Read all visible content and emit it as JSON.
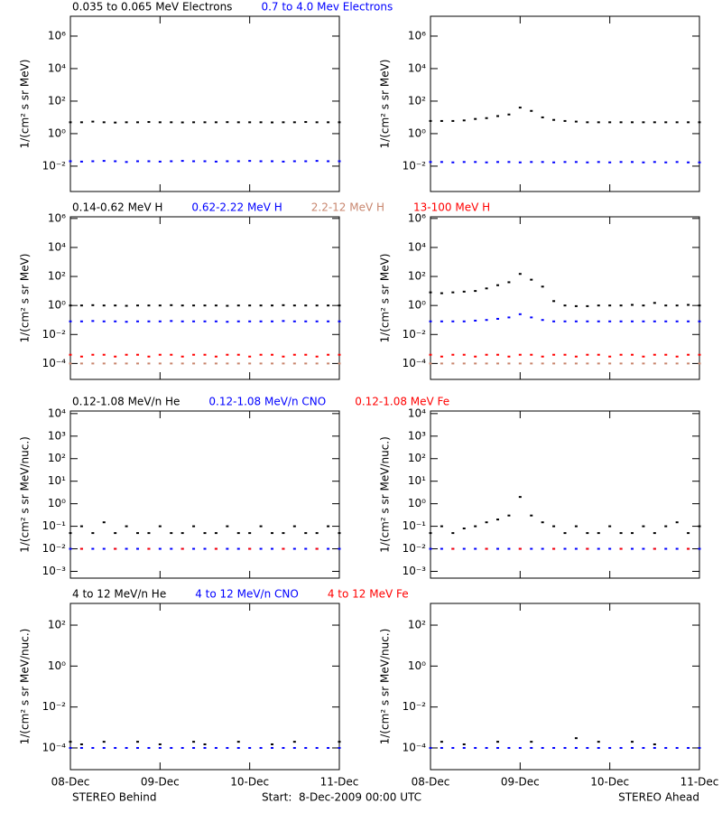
{
  "chart_data": [
    {
      "type": "scatter",
      "ylabel": "1/(cm² s sr MeV)",
      "log_scale": true,
      "ylim": [
        0.000275,
        16600000
      ],
      "yticks": [
        {
          "value": 0.01,
          "label": "10⁻²"
        },
        {
          "value": 1,
          "label": "10⁰"
        },
        {
          "value": 100,
          "label": "10²"
        },
        {
          "value": 10000,
          "label": "10⁴"
        },
        {
          "value": 1000000,
          "label": "10⁶"
        }
      ],
      "xlim": [
        0,
        3
      ],
      "xticks": [
        {
          "value": 0,
          "label": "08-Dec"
        },
        {
          "value": 1,
          "label": "09-Dec"
        },
        {
          "value": 2,
          "label": "10-Dec"
        },
        {
          "value": 3,
          "label": "11-Dec"
        }
      ],
      "x": [
        0,
        0.125,
        0.25,
        0.375,
        0.5,
        0.625,
        0.75,
        0.875,
        1,
        1.125,
        1.25,
        1.375,
        1.5,
        1.625,
        1.75,
        1.875,
        2,
        2.125,
        2.25,
        2.375,
        2.5,
        2.625,
        2.75,
        2.875,
        3
      ],
      "series": [
        {
          "name": "0.035 to 0.065 MeV Electrons",
          "color": "#000000",
          "behind": [
            5,
            5,
            5.5,
            5,
            4.8,
            5,
            5,
            5.2,
            5,
            5,
            4.9,
            5,
            5,
            5,
            5.1,
            5,
            5,
            5,
            4.9,
            5,
            5,
            5.2,
            5,
            5,
            5
          ],
          "ahead": [
            6,
            6,
            6,
            6.5,
            8,
            9,
            12,
            15,
            40,
            25,
            10,
            7,
            6,
            5.5,
            5,
            5,
            5,
            5,
            5,
            5,
            5,
            5,
            5,
            5,
            5
          ]
        },
        {
          "name": "0.7 to 4.0 Mev Electrons",
          "color": "#0000ff",
          "behind": [
            0.02,
            0.019,
            0.02,
            0.021,
            0.02,
            0.018,
            0.02,
            0.02,
            0.019,
            0.02,
            0.021,
            0.02,
            0.02,
            0.019,
            0.02,
            0.02,
            0.021,
            0.02,
            0.02,
            0.019,
            0.02,
            0.02,
            0.021,
            0.02,
            0.02
          ],
          "ahead": [
            0.018,
            0.018,
            0.017,
            0.018,
            0.018,
            0.017,
            0.018,
            0.018,
            0.017,
            0.018,
            0.018,
            0.017,
            0.018,
            0.018,
            0.017,
            0.018,
            0.017,
            0.018,
            0.018,
            0.017,
            0.018,
            0.017,
            0.018,
            0.017,
            0.017
          ]
        }
      ]
    },
    {
      "type": "scatter",
      "ylabel": "1/(cm² s sr MeV)",
      "log_scale": true,
      "ylim": [
        8e-06,
        1300000
      ],
      "yticks": [
        {
          "value": 0.0001,
          "label": "10⁻⁴"
        },
        {
          "value": 0.01,
          "label": "10⁻²"
        },
        {
          "value": 1,
          "label": "10⁰"
        },
        {
          "value": 100,
          "label": "10²"
        },
        {
          "value": 10000,
          "label": "10⁴"
        },
        {
          "value": 1000000,
          "label": "10⁶"
        }
      ],
      "xlim": [
        0,
        3
      ],
      "xticks": [
        {
          "value": 0,
          "label": "08-Dec"
        },
        {
          "value": 1,
          "label": "09-Dec"
        },
        {
          "value": 2,
          "label": "10-Dec"
        },
        {
          "value": 3,
          "label": "11-Dec"
        }
      ],
      "x": [
        0,
        0.125,
        0.25,
        0.375,
        0.5,
        0.625,
        0.75,
        0.875,
        1,
        1.125,
        1.25,
        1.375,
        1.5,
        1.625,
        1.75,
        1.875,
        2,
        2.125,
        2.25,
        2.375,
        2.5,
        2.625,
        2.75,
        2.875,
        3
      ],
      "series": [
        {
          "name": "0.14-0.62 MeV H",
          "color": "#000000",
          "behind": [
            1,
            1,
            1.05,
            1,
            1,
            0.95,
            1,
            1,
            1,
            1.05,
            1,
            1,
            1,
            1,
            0.95,
            1,
            1,
            1,
            1,
            1.05,
            1,
            1,
            1,
            1,
            1
          ],
          "ahead": [
            8,
            7,
            8,
            9,
            10,
            15,
            25,
            40,
            150,
            60,
            20,
            2,
            1,
            0.9,
            0.9,
            1,
            1,
            1,
            1.1,
            1,
            1.5,
            1,
            1,
            1.1,
            1
          ]
        },
        {
          "name": "0.62-2.22 MeV H",
          "color": "#0000ff",
          "behind": [
            0.08,
            0.08,
            0.085,
            0.08,
            0.08,
            0.075,
            0.08,
            0.08,
            0.08,
            0.085,
            0.08,
            0.08,
            0.08,
            0.08,
            0.075,
            0.08,
            0.08,
            0.08,
            0.08,
            0.085,
            0.08,
            0.08,
            0.08,
            0.08,
            0.08
          ],
          "ahead": [
            0.08,
            0.08,
            0.08,
            0.08,
            0.09,
            0.1,
            0.12,
            0.15,
            0.25,
            0.15,
            0.1,
            0.08,
            0.08,
            0.08,
            0.08,
            0.08,
            0.08,
            0.08,
            0.08,
            0.08,
            0.08,
            0.08,
            0.08,
            0.08,
            0.08
          ]
        },
        {
          "name": "2.2-12 MeV H",
          "color": "#c8866e",
          "behind": [
            0.0001,
            0.0001,
            0.0001,
            0.0001,
            0.0001,
            0.0001,
            0.0001,
            0.0001,
            0.0001,
            0.0001,
            0.0001,
            0.0001,
            0.0001,
            0.0001,
            0.0001,
            0.0001,
            0.0001,
            0.0001,
            0.0001,
            0.0001,
            0.0001,
            0.0001,
            0.0001,
            0.0001,
            0.0001
          ],
          "ahead": [
            0.0001,
            0.0001,
            0.0001,
            0.0001,
            0.0001,
            0.0001,
            0.0001,
            0.0001,
            0.0001,
            0.0001,
            0.0001,
            0.0001,
            0.0001,
            0.0001,
            0.0001,
            0.0001,
            0.0001,
            0.0001,
            0.0001,
            0.0001,
            0.0001,
            0.0001,
            0.0001,
            0.0001,
            0.0001
          ]
        },
        {
          "name": "13-100 MeV H",
          "color": "#ff0000",
          "behind": [
            0.0004,
            0.0003,
            0.0004,
            0.0004,
            0.0003,
            0.0004,
            0.0004,
            0.0003,
            0.0004,
            0.0004,
            0.0003,
            0.0004,
            0.0004,
            0.0003,
            0.0004,
            0.0004,
            0.0003,
            0.0004,
            0.0004,
            0.0003,
            0.0004,
            0.0004,
            0.0003,
            0.0004,
            0.0004
          ],
          "ahead": [
            0.0004,
            0.0003,
            0.0004,
            0.0004,
            0.0003,
            0.0004,
            0.0004,
            0.0003,
            0.0004,
            0.0004,
            0.0003,
            0.0004,
            0.0004,
            0.0003,
            0.0004,
            0.0004,
            0.0003,
            0.0004,
            0.0004,
            0.0003,
            0.0004,
            0.0004,
            0.0003,
            0.0004,
            0.0004
          ]
        }
      ]
    },
    {
      "type": "scatter",
      "ylabel": "1/(cm² s sr MeV/nuc.)",
      "log_scale": true,
      "ylim": [
        0.0005,
        13000
      ],
      "yticks": [
        {
          "value": 0.001,
          "label": "10⁻³"
        },
        {
          "value": 0.01,
          "label": "10⁻²"
        },
        {
          "value": 0.1,
          "label": "10⁻¹"
        },
        {
          "value": 1,
          "label": "10⁰"
        },
        {
          "value": 10,
          "label": "10¹"
        },
        {
          "value": 100,
          "label": "10²"
        },
        {
          "value": 1000,
          "label": "10³"
        },
        {
          "value": 10000,
          "label": "10⁴"
        }
      ],
      "xlim": [
        0,
        3
      ],
      "xticks": [
        {
          "value": 0,
          "label": "08-Dec"
        },
        {
          "value": 1,
          "label": "09-Dec"
        },
        {
          "value": 2,
          "label": "10-Dec"
        },
        {
          "value": 3,
          "label": "11-Dec"
        }
      ],
      "x": [
        0,
        0.125,
        0.25,
        0.375,
        0.5,
        0.625,
        0.75,
        0.875,
        1,
        1.125,
        1.25,
        1.375,
        1.5,
        1.625,
        1.75,
        1.875,
        2,
        2.125,
        2.25,
        2.375,
        2.5,
        2.625,
        2.75,
        2.875,
        3
      ],
      "series": [
        {
          "name": "0.12-1.08 MeV/n He",
          "color": "#000000",
          "behind": [
            0.05,
            0.1,
            0.05,
            0.15,
            0.05,
            0.1,
            0.05,
            0.05,
            0.1,
            0.05,
            0.05,
            0.1,
            0.05,
            0.05,
            0.1,
            0.05,
            0.05,
            0.1,
            0.05,
            0.05,
            0.1,
            0.05,
            0.05,
            0.1,
            0.05
          ],
          "ahead": [
            0.05,
            0.1,
            0.05,
            0.08,
            0.1,
            0.15,
            0.2,
            0.3,
            2,
            0.3,
            0.15,
            0.1,
            0.05,
            0.1,
            0.05,
            0.05,
            0.1,
            0.05,
            0.05,
            0.1,
            0.05,
            0.1,
            0.15,
            0.05,
            0.1
          ]
        },
        {
          "name": "0.12-1.08 MeV/n CNO",
          "color": "#0000ff",
          "behind": [
            0.01,
            0.01,
            0.01,
            0.01,
            0.01,
            0.01,
            0.01,
            0.01,
            0.01,
            0.01,
            0.01,
            0.01,
            0.01,
            0.01,
            0.01,
            0.01,
            0.01,
            0.01,
            0.01,
            0.01,
            0.01,
            0.01,
            0.01,
            0.01,
            0.01
          ],
          "ahead": [
            0.01,
            0.01,
            0.01,
            0.01,
            0.01,
            0.01,
            0.01,
            0.01,
            0.01,
            0.01,
            0.01,
            0.01,
            0.01,
            0.01,
            0.01,
            0.01,
            0.01,
            0.01,
            0.01,
            0.01,
            0.01,
            0.01,
            0.01,
            0.01,
            0.01
          ]
        },
        {
          "name": "0.12-1.08 MeV Fe",
          "color": "#ff0000",
          "behind": [
            null,
            0.01,
            null,
            null,
            0.01,
            null,
            null,
            0.01,
            null,
            null,
            0.01,
            null,
            null,
            0.01,
            null,
            null,
            0.01,
            null,
            null,
            0.01,
            null,
            null,
            0.01,
            null,
            null
          ],
          "ahead": [
            null,
            null,
            0.01,
            null,
            null,
            0.01,
            null,
            null,
            0.01,
            null,
            null,
            0.01,
            null,
            null,
            0.01,
            null,
            null,
            0.01,
            null,
            null,
            0.01,
            null,
            null,
            0.01,
            null
          ]
        }
      ]
    },
    {
      "type": "scatter",
      "ylabel": "1/(cm² s sr MeV/nuc.)",
      "log_scale": true,
      "ylim": [
        8.7e-06,
        1150
      ],
      "yticks": [
        {
          "value": 0.0001,
          "label": "10⁻⁴"
        },
        {
          "value": 0.01,
          "label": "10⁻²"
        },
        {
          "value": 1,
          "label": "10⁰"
        },
        {
          "value": 100,
          "label": "10²"
        }
      ],
      "xlim": [
        0,
        3
      ],
      "xticks": [
        {
          "value": 0,
          "label": "08-Dec"
        },
        {
          "value": 1,
          "label": "09-Dec"
        },
        {
          "value": 2,
          "label": "10-Dec"
        },
        {
          "value": 3,
          "label": "11-Dec"
        }
      ],
      "x": [
        0,
        0.125,
        0.25,
        0.375,
        0.5,
        0.625,
        0.75,
        0.875,
        1,
        1.125,
        1.25,
        1.375,
        1.5,
        1.625,
        1.75,
        1.875,
        2,
        2.125,
        2.25,
        2.375,
        2.5,
        2.625,
        2.75,
        2.875,
        3
      ],
      "series": [
        {
          "name": "4 to 12 MeV/n He",
          "color": "#000000",
          "behind": [
            0.0002,
            0.00015,
            null,
            0.0002,
            null,
            null,
            0.0002,
            null,
            0.00015,
            null,
            null,
            0.0002,
            0.00015,
            null,
            null,
            0.0002,
            null,
            null,
            0.00015,
            null,
            0.0002,
            null,
            null,
            null,
            0.0002
          ],
          "ahead": [
            null,
            0.0002,
            null,
            0.00015,
            null,
            null,
            0.0002,
            null,
            null,
            0.0002,
            null,
            null,
            null,
            0.0003,
            null,
            0.0002,
            null,
            null,
            0.0002,
            null,
            0.00015,
            null,
            null,
            null,
            null
          ]
        },
        {
          "name": "4 to 12 MeV/n CNO",
          "color": "#0000ff",
          "behind": [
            0.0001,
            0.0001,
            0.0001,
            0.0001,
            0.0001,
            0.0001,
            0.0001,
            0.0001,
            0.0001,
            0.0001,
            0.0001,
            0.0001,
            0.0001,
            0.0001,
            0.0001,
            0.0001,
            0.0001,
            0.0001,
            0.0001,
            0.0001,
            0.0001,
            0.0001,
            0.0001,
            0.0001,
            0.0001
          ],
          "ahead": [
            0.0001,
            0.0001,
            0.0001,
            0.0001,
            0.0001,
            0.0001,
            0.0001,
            0.0001,
            0.0001,
            0.0001,
            0.0001,
            0.0001,
            0.0001,
            0.0001,
            0.0001,
            0.0001,
            0.0001,
            0.0001,
            0.0001,
            0.0001,
            0.0001,
            0.0001,
            0.0001,
            0.0001,
            0.0001
          ]
        },
        {
          "name": "4 to 12 MeV Fe",
          "color": "#ff0000",
          "behind": [
            null,
            null,
            null,
            null,
            null,
            null,
            null,
            null,
            null,
            null,
            null,
            null,
            null,
            null,
            null,
            null,
            null,
            null,
            null,
            null,
            null,
            null,
            null,
            null,
            null
          ],
          "ahead": [
            null,
            null,
            null,
            null,
            null,
            null,
            null,
            null,
            null,
            null,
            null,
            null,
            null,
            null,
            null,
            null,
            null,
            null,
            null,
            null,
            null,
            null,
            null,
            null,
            null
          ]
        }
      ]
    }
  ],
  "footer": {
    "left": "STEREO Behind",
    "center": "Start:  8-Dec-2009 00:00 UTC",
    "right": "STEREO Ahead"
  }
}
